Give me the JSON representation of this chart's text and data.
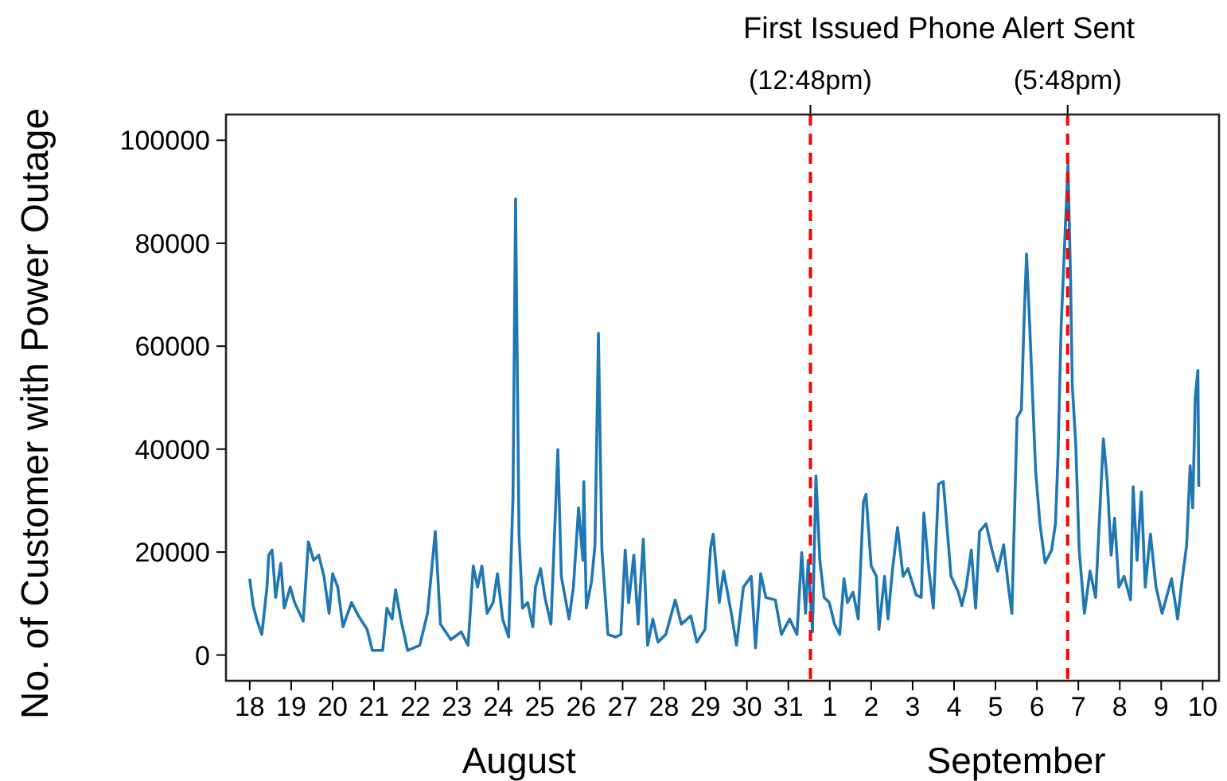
{
  "chart_data": {
    "type": "line",
    "title": "First Issued Phone Alert Sent",
    "ylabel": "No. of Customer with Power Outage",
    "annotations": [
      "August",
      "September"
    ],
    "xlim": [
      "--08-17T10:15",
      "--09-10T09:30"
    ],
    "ylim": [
      -5000,
      105000
    ],
    "yticks": [
      0,
      20000,
      40000,
      60000,
      80000,
      100000
    ],
    "xticks": [
      {
        "value": "--08-18",
        "label": "18"
      },
      {
        "value": "--08-19",
        "label": "19"
      },
      {
        "value": "--08-20",
        "label": "20"
      },
      {
        "value": "--08-21",
        "label": "21"
      },
      {
        "value": "--08-22",
        "label": "22"
      },
      {
        "value": "--08-23",
        "label": "23"
      },
      {
        "value": "--08-24",
        "label": "24"
      },
      {
        "value": "--08-25",
        "label": "25"
      },
      {
        "value": "--08-26",
        "label": "26"
      },
      {
        "value": "--08-27",
        "label": "27"
      },
      {
        "value": "--08-28",
        "label": "28"
      },
      {
        "value": "--08-29",
        "label": "29"
      },
      {
        "value": "--08-30",
        "label": "30"
      },
      {
        "value": "--08-31",
        "label": "31"
      },
      {
        "value": "--09-01",
        "label": "1"
      },
      {
        "value": "--09-02",
        "label": "2"
      },
      {
        "value": "--09-03",
        "label": "3"
      },
      {
        "value": "--09-04",
        "label": "4"
      },
      {
        "value": "--09-05",
        "label": "5"
      },
      {
        "value": "--09-06",
        "label": "6"
      },
      {
        "value": "--09-07",
        "label": "7"
      },
      {
        "value": "--09-08",
        "label": "8"
      },
      {
        "value": "--09-09",
        "label": "9"
      },
      {
        "value": "--09-10",
        "label": "10"
      }
    ],
    "ref_lines": [
      {
        "axis": "x",
        "value": "--08-31T12:48",
        "label": "(12:48pm)",
        "color": "#ff0000",
        "line_style": "dashed"
      },
      {
        "axis": "x",
        "value": "--09-06T17:48",
        "label": "(5:48pm)",
        "color": "#ff0000",
        "line_style": "dashed"
      }
    ],
    "grid": false,
    "marker": "none",
    "line_style": "solid",
    "series": [
      {
        "color": "#1f77b4",
        "x": [
          "--08-18T00:00",
          "--08-18T02:00",
          "--08-18T04:00",
          "--08-18T07:00",
          "--08-18T10:00",
          "--08-18T11:00",
          "--08-18T13:00",
          "--08-18T15:00",
          "--08-18T18:00",
          "--08-18T20:00",
          "--08-18T23:30",
          "--08-19T02:00",
          "--08-19T07:00",
          "--08-19T10:00",
          "--08-19T13:00",
          "--08-19T16:00",
          "--08-19T19:00",
          "--08-19T22:00",
          "--08-20T00:00",
          "--08-20T03:00",
          "--08-20T06:00",
          "--08-20T11:00",
          "--08-20T15:00",
          "--08-20T20:00",
          "--08-20T23:00",
          "--08-21T05:00",
          "--08-21T07:30",
          "--08-21T10:30",
          "--08-21T12:30",
          "--08-21T15:30",
          "--08-21T19:30",
          "--08-22T02:30",
          "--08-22T07:00",
          "--08-22T11:30",
          "--08-22T14:30",
          "--08-22T20:30",
          "--08-23T02:30",
          "--08-23T06:30",
          "--08-23T09:30",
          "--08-23T12:00",
          "--08-23T14:30",
          "--08-23T17:30",
          "--08-23T21:00",
          "--08-23T23:30",
          "--08-24T02:30",
          "--08-24T06:00",
          "--08-24T08:30",
          "--08-24T10:00",
          "--08-24T12:00",
          "--08-24T14:00",
          "--08-24T17:00",
          "--08-24T20:00",
          "--08-24T21:30",
          "--08-25T00:30",
          "--08-25T03:00",
          "--08-25T06:30",
          "--08-25T10:30",
          "--08-25T12:30",
          "--08-25T17:00",
          "--08-25T19:30",
          "--08-25T22:30",
          "--08-26T01:00",
          "--08-26T01:30",
          "--08-26T03:00",
          "--08-26T06:00",
          "--08-26T08:00",
          "--08-26T10:00",
          "--08-26T12:00",
          "--08-26T15:30",
          "--08-26T20:00",
          "--08-26T23:00",
          "--08-27T01:30",
          "--08-27T03:30",
          "--08-27T06:30",
          "--08-27T09:00",
          "--08-27T12:00",
          "--08-27T14:30",
          "--08-27T17:30",
          "--08-27T20:30",
          "--08-28T01:00",
          "--08-28T06:30",
          "--08-28T10:00",
          "--08-28T15:30",
          "--08-28T19:00",
          "--08-28T23:45",
          "--08-29T03:00",
          "--08-29T04:30",
          "--08-29T08:00",
          "--08-29T10:30",
          "--08-29T15:00",
          "--08-29T18:00",
          "--08-29T22:00",
          "--08-30T02:30",
          "--08-30T05:00",
          "--08-30T08:00",
          "--08-30T11:00",
          "--08-30T16:30",
          "--08-30T20:00",
          "--08-31T00:45",
          "--08-31T05:00",
          "--08-31T07:45",
          "--08-31T10:00",
          "--08-31T11:30",
          "--08-31T14:00",
          "--08-31T16:00",
          "--08-31T18:15",
          "--08-31T20:45",
          "--08-31T23:45",
          "--09-01T02:45",
          "--09-01T05:45",
          "--09-01T08:15",
          "--09-01T10:15",
          "--09-01T13:30",
          "--09-01T16:30",
          "--09-01T19:30",
          "--09-01T21:00",
          "--09-02T00:00",
          "--09-02T03:00",
          "--09-02T04:30",
          "--09-02T07:45",
          "--09-02T09:45",
          "--09-02T12:15",
          "--09-02T15:15",
          "--09-02T18:30",
          "--09-02T21:15",
          "--09-03T02:00",
          "--09-03T05:00",
          "--09-03T06:30",
          "--09-03T09:30",
          "--09-03T12:00",
          "--09-03T15:00",
          "--09-03T17:45",
          "--09-03T20:15",
          "--09-03T22:15",
          "--09-04T02:30",
          "--09-04T04:30",
          "--09-04T07:00",
          "--09-04T10:00",
          "--09-04T12:30",
          "--09-04T14:45",
          "--09-04T18:30",
          "--09-04T22:00",
          "--09-05T01:15",
          "--09-05T04:45",
          "--09-05T07:30",
          "--09-05T09:30",
          "--09-05T12:30",
          "--09-05T15:00",
          "--09-05T16:30",
          "--09-05T18:00",
          "--09-05T19:30",
          "--09-05T21:00",
          "--09-05T23:15",
          "--09-06T01:45",
          "--09-06T04:45",
          "--09-06T08:30",
          "--09-06T10:45",
          "--09-06T12:15",
          "--09-06T14:00",
          "--09-06T18:00",
          "--09-06T19:30",
          "--09-06T20:30",
          "--09-06T22:30",
          "--09-07T00:30",
          "--09-07T03:30",
          "--09-07T06:45",
          "--09-07T10:00",
          "--09-07T14:30",
          "--09-07T16:45",
          "--09-07T19:00",
          "--09-07T21:00",
          "--09-07T23:30",
          "--09-08T02:30",
          "--09-08T06:15",
          "--09-08T07:45",
          "--09-08T10:00",
          "--09-08T12:30",
          "--09-08T14:45",
          "--09-08T17:45",
          "--09-08T21:00",
          "--09-09T00:30",
          "--09-09T06:00",
          "--09-09T09:30",
          "--09-09T12:00",
          "--09-09T14:45",
          "--09-09T16:45",
          "--09-09T18:15",
          "--09-09T19:45",
          "--09-09T21:15",
          "--09-09T21:45"
        ],
        "values": [
          14800,
          9600,
          7000,
          4000,
          13200,
          19400,
          20400,
          11200,
          17800,
          9100,
          13200,
          10200,
          6600,
          22000,
          18400,
          19400,
          15300,
          8100,
          15800,
          13200,
          5500,
          10200,
          7600,
          5000,
          900,
          900,
          9100,
          7000,
          12700,
          7000,
          900,
          1900,
          8100,
          24000,
          6000,
          3000,
          4500,
          1900,
          17300,
          13200,
          17300,
          8100,
          10200,
          15800,
          7000,
          3500,
          30700,
          88600,
          23500,
          9100,
          10200,
          5500,
          13200,
          16800,
          11200,
          6000,
          39900,
          15300,
          7000,
          13200,
          28600,
          18400,
          33700,
          9100,
          14300,
          21400,
          62500,
          20400,
          4000,
          3500,
          4000,
          20400,
          10200,
          19400,
          6000,
          22500,
          1900,
          7000,
          2500,
          4000,
          10700,
          6000,
          7600,
          2500,
          5000,
          20900,
          23500,
          10200,
          16300,
          8100,
          1900,
          13200,
          15300,
          1400,
          15800,
          11200,
          10700,
          4000,
          7000,
          4000,
          19900,
          8100,
          18400,
          4500,
          34800,
          18400,
          11200,
          10200,
          6000,
          4000,
          14800,
          10200,
          12200,
          7000,
          29700,
          31200,
          17300,
          15300,
          5000,
          15300,
          7000,
          16300,
          24800,
          15300,
          16800,
          11700,
          11200,
          27600,
          16300,
          9100,
          33200,
          33700,
          23500,
          15300,
          12200,
          9600,
          13200,
          20400,
          9100,
          24000,
          25500,
          20400,
          16300,
          21400,
          13200,
          8100,
          46100,
          47600,
          64500,
          77900,
          66600,
          54300,
          35800,
          25500,
          17900,
          20400,
          25500,
          38900,
          63500,
          95300,
          72800,
          52300,
          40900,
          20400,
          8100,
          16300,
          11200,
          42000,
          33700,
          19400,
          26600,
          13200,
          15300,
          10700,
          32700,
          18400,
          31700,
          13200,
          23500,
          13200,
          8100,
          14800,
          7000,
          14300,
          21400,
          36800,
          28600,
          50200,
          55300,
          32700
        ]
      }
    ]
  }
}
